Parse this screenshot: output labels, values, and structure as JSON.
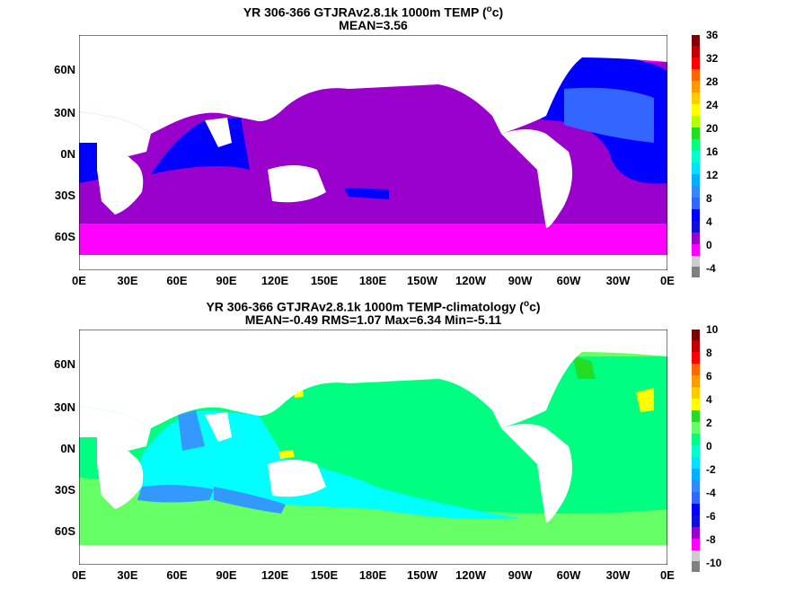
{
  "top": {
    "title_main": "YR 306-366 GTJRAv2.8.1k 1000m TEMP (",
    "title_unit_sup": "o",
    "title_unit_end": "c)",
    "subtitle": "MEAN=3.56",
    "lat_labels": [
      "60N",
      "30N",
      "0N",
      "30S",
      "60S"
    ],
    "lon_labels": [
      "0E",
      "30E",
      "60E",
      "90E",
      "120E",
      "150E",
      "180E",
      "150W",
      "120W",
      "90W",
      "60W",
      "30W",
      "0E"
    ],
    "colorbar_ticks": [
      "36",
      "32",
      "28",
      "24",
      "20",
      "16",
      "12",
      "8",
      "4",
      "0",
      "-4"
    ],
    "colorbar_colors": [
      "#7f0000",
      "#c00000",
      "#ff0000",
      "#ff6600",
      "#ff9900",
      "#ffcc00",
      "#ffff00",
      "#b4ff00",
      "#22dd22",
      "#00ff80",
      "#00ffcc",
      "#00e0ff",
      "#00b0ff",
      "#3388ff",
      "#3366ff",
      "#0000ff",
      "#1010dd",
      "#9900cc",
      "#ff00ff",
      "#cccccc",
      "#808080"
    ]
  },
  "bottom": {
    "title_main": "YR 306-366 GTJRAv2.8.1k 1000m TEMP-climatology (",
    "title_unit_sup": "o",
    "title_unit_end": "c)",
    "subtitle": "MEAN=-0.49   RMS=1.07   Max=6.34   Min=-5.11",
    "lat_labels": [
      "60N",
      "30N",
      "0N",
      "30S",
      "60S"
    ],
    "lon_labels": [
      "0E",
      "30E",
      "60E",
      "90E",
      "120E",
      "150E",
      "180E",
      "150W",
      "120W",
      "90W",
      "60W",
      "30W",
      "0E"
    ],
    "colorbar_ticks": [
      "10",
      "8",
      "6",
      "4",
      "2",
      "0",
      "-2",
      "-4",
      "-6",
      "-8",
      "-10"
    ],
    "colorbar_colors": [
      "#7f0000",
      "#c00000",
      "#ff0000",
      "#ff6600",
      "#ff9900",
      "#ffcc00",
      "#ffff00",
      "#22dd22",
      "#66ff66",
      "#00ff80",
      "#00ffcc",
      "#00e0ff",
      "#00b0ff",
      "#3388ff",
      "#3366ff",
      "#0000ff",
      "#1010dd",
      "#9900cc",
      "#ff00ff",
      "#cccccc",
      "#808080"
    ]
  },
  "palette": {
    "land": "#ffffff",
    "top_dominant": "#9900cc",
    "top_polar": "#ff00ff",
    "top_warm": "#0000ff",
    "top_north_atlantic": "#3366ff",
    "bottom_dominant": "#00ff80",
    "bottom_southern": "#66ff66",
    "bottom_indian": "#00ffff",
    "bottom_cool": "#3399ff",
    "bottom_hot": "#ffff00"
  }
}
